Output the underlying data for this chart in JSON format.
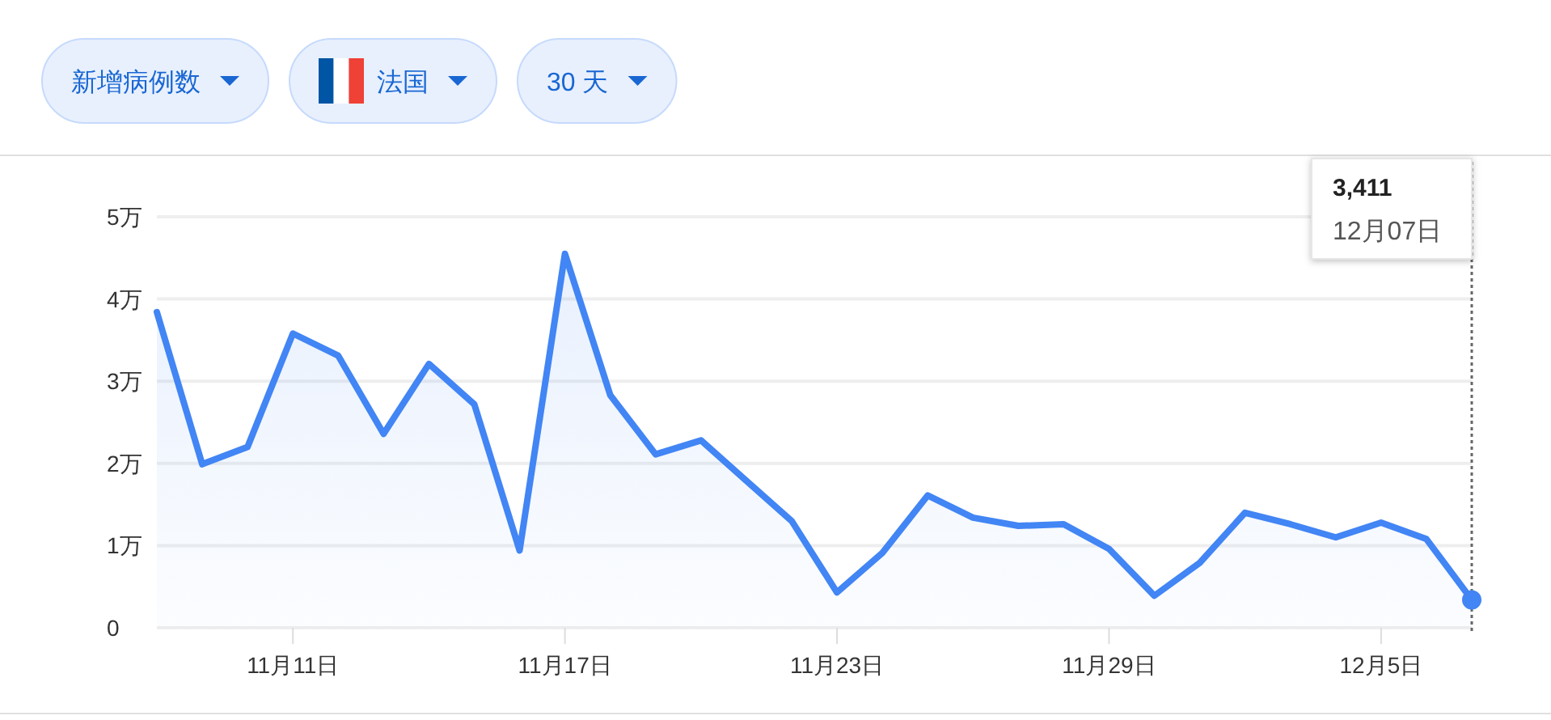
{
  "chart_data": {
    "type": "area",
    "x": [
      "--11-08",
      "--11-09",
      "--11-10",
      "--11-11",
      "--11-12",
      "--11-13",
      "--11-14",
      "--11-15",
      "--11-16",
      "--11-17",
      "--11-18",
      "--11-19",
      "--11-20",
      "--11-21",
      "--11-22",
      "--11-23",
      "--11-24",
      "--11-25",
      "--11-26",
      "--11-27",
      "--11-28",
      "--11-29",
      "--11-30",
      "--12-01",
      "--12-02",
      "--12-03",
      "--12-04",
      "--12-05",
      "--12-06",
      "--12-07"
    ],
    "series": [
      {
        "color": "#4285f4",
        "values": [
          3.84,
          1.99,
          2.2,
          3.58,
          3.31,
          2.36,
          3.21,
          2.72,
          0.94,
          4.55,
          2.83,
          2.11,
          2.28,
          1.79,
          1.3,
          0.43,
          0.91,
          1.61,
          1.34,
          1.24,
          1.26,
          0.96,
          0.39,
          0.79,
          1.4,
          1.26,
          1.1,
          1.28,
          1.08,
          0.34
        ]
      }
    ],
    "xlim": [
      "--11-08",
      "--12-07"
    ],
    "xticks": [
      {
        "value": "--11-11",
        "label": "11月11日"
      },
      {
        "value": "--11-17",
        "label": "11月17日"
      },
      {
        "value": "--11-23",
        "label": "11月23日"
      },
      {
        "value": "--11-29",
        "label": "11月29日"
      },
      {
        "value": "--12-05",
        "label": "12月5日"
      }
    ],
    "ylim": [
      0,
      5
    ],
    "yticks": [
      0,
      {
        "value": 1,
        "label": "1万"
      },
      {
        "value": 2,
        "label": "2万"
      },
      {
        "value": 3,
        "label": "3万"
      },
      {
        "value": 4,
        "label": "4万"
      },
      {
        "value": 5,
        "label": "5万"
      }
    ],
    "grid": "y",
    "ref_lines": [
      {
        "axis": "x",
        "value": "--12-07",
        "color": "#666666",
        "line_style": "dotted"
      }
    ],
    "annotations": [
      "3,411",
      "12月07日",
      "新增病例数",
      "法国",
      "30 天"
    ]
  }
}
